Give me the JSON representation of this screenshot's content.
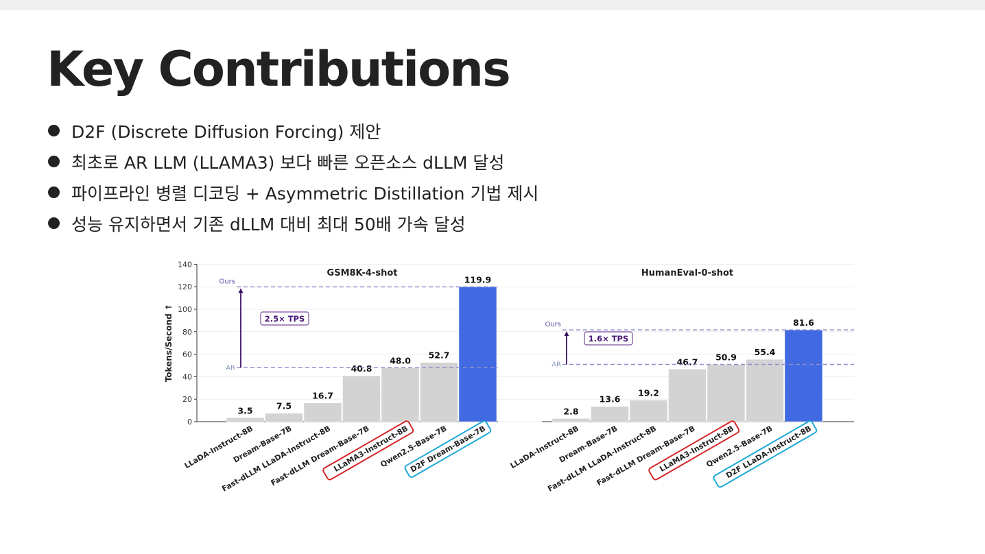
{
  "title": "Key Contributions",
  "bullets": [
    "D2F (Discrete Diffusion Forcing) 제안",
    "최초로 AR LLM (LLAMA3) 보다 빠른 오픈소스 dLLM 달성",
    "파이프라인 병렬 디코딩 + Asymmetric Distillation 기법 제시",
    "성능 유지하면서 기존 dLLM 대비 최대 50배 가속 달성"
  ],
  "colors": {
    "bar_default": "#d3d3d3",
    "bar_ours": "#4169e1",
    "highlight_red": "#d62728",
    "highlight_cyan": "#1fa8d6",
    "ref_line": "#9090d0",
    "arrow": "#3a1060"
  },
  "chart_data": [
    {
      "type": "bar",
      "title": "GSM8K-4-shot",
      "ylabel": "Tokens/Second ↑",
      "ylim": [
        0,
        140
      ],
      "yticks": [
        0,
        20,
        40,
        60,
        80,
        100,
        120,
        140
      ],
      "categories": [
        "LLaDA-Instruct-8B",
        "Dream-Base-7B",
        "Fast-dLLM LLaDA-Instruct-8B",
        "Fast-dLLM Dream-Base-7B",
        "LLaMA3-Instruct-8B",
        "Qwen2.5-Base-7B",
        "D2F Dream-Base-7B"
      ],
      "values": [
        3.5,
        7.5,
        16.7,
        40.8,
        48.0,
        52.7,
        119.9
      ],
      "value_labels": [
        "3.5",
        "7.5",
        "16.7",
        "40.8",
        "48.0",
        "52.7",
        "119.9"
      ],
      "highlighted": {
        "red": "LLaMA3-Instruct-8B",
        "cyan": "D2F Dream-Base-7B"
      },
      "ours_index": 6,
      "ref_lines": [
        {
          "label": "Ours",
          "value": 119.9
        },
        {
          "label": "AR",
          "value": 48.0
        }
      ],
      "annotation": "2.5× TPS",
      "grid": true
    },
    {
      "type": "bar",
      "title": "HumanEval-0-shot",
      "ylim": [
        0,
        140
      ],
      "categories": [
        "LLaDA-Instruct-8B",
        "Dream-Base-7B",
        "Fast-dLLM LLaDA-Instruct-8B",
        "Fast-dLLM Dream-Base-7B",
        "LLaMA3-Instruct-8B",
        "Qwen2.5-Base-7B",
        "D2F LLaDA-Instruct-8B"
      ],
      "values": [
        2.8,
        13.6,
        19.2,
        46.7,
        50.9,
        55.4,
        81.6
      ],
      "value_labels": [
        "2.8",
        "13.6",
        "19.2",
        "46.7",
        "50.9",
        "55.4",
        "81.6"
      ],
      "highlighted": {
        "red": "LLaMA3-Instruct-8B",
        "cyan": "D2F LLaDA-Instruct-8B"
      },
      "ours_index": 6,
      "ref_lines": [
        {
          "label": "Ours",
          "value": 81.6
        },
        {
          "label": "AR",
          "value": 50.9
        }
      ],
      "annotation": "1.6× TPS",
      "grid": true
    }
  ]
}
